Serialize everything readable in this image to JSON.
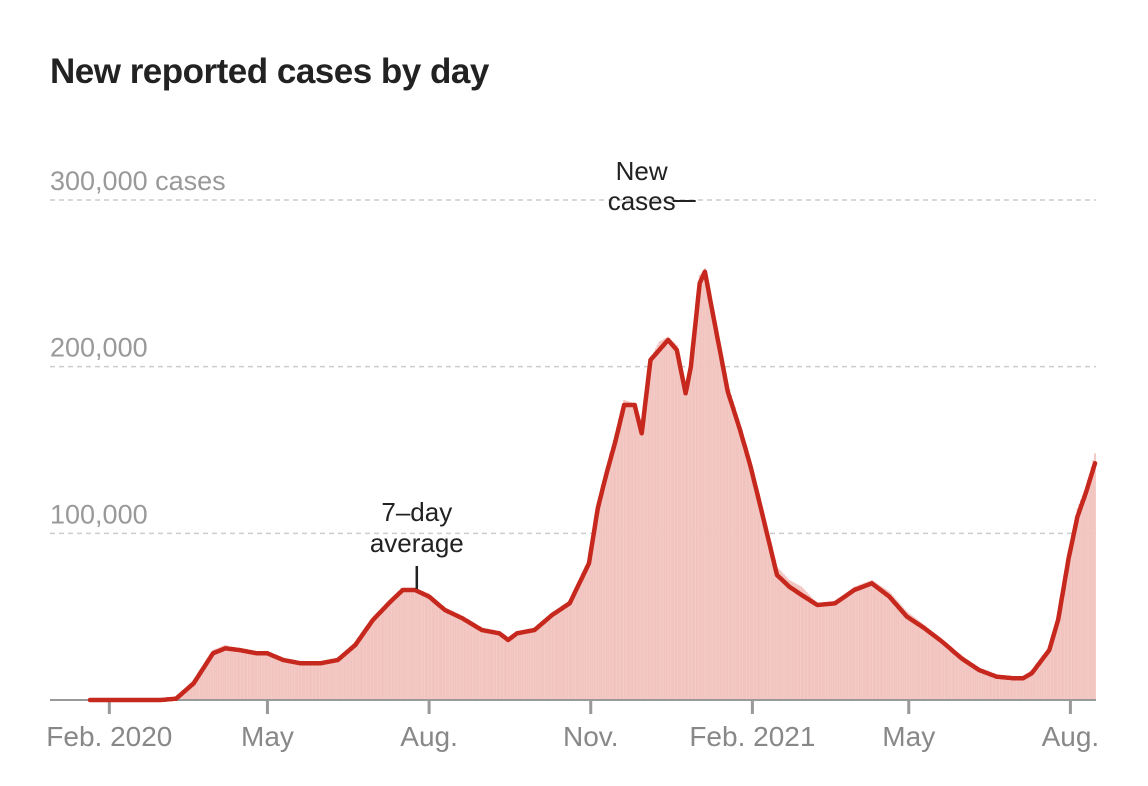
{
  "chart_data": {
    "type": "bar",
    "title": "New reported cases by day",
    "y_unit_label": "300,000 cases",
    "ylim": [
      0,
      300000
    ],
    "yticks": [
      {
        "value": 100000,
        "label": "100,000"
      },
      {
        "value": 200000,
        "label": "200,000"
      },
      {
        "value": 300000,
        "label": "300,000 cases"
      }
    ],
    "x_range": [
      "2020-01-21",
      "2021-08-15"
    ],
    "xticks": [
      {
        "date": "2020-02-01",
        "label": "Feb. 2020"
      },
      {
        "date": "2020-05-01",
        "label": "May"
      },
      {
        "date": "2020-08-01",
        "label": "Aug."
      },
      {
        "date": "2020-11-01",
        "label": "Nov."
      },
      {
        "date": "2021-02-01",
        "label": "Feb. 2021"
      },
      {
        "date": "2021-05-01",
        "label": "May"
      },
      {
        "date": "2021-08-01",
        "label": "Aug."
      }
    ],
    "grid": true,
    "series": [
      {
        "name": "New cases",
        "kind": "daily bars",
        "color": "#f2c4c0",
        "x": [
          "2020-01-21",
          "2020-02-15",
          "2020-03-01",
          "2020-03-10",
          "2020-03-20",
          "2020-03-31",
          "2020-04-07",
          "2020-04-15",
          "2020-04-25",
          "2020-05-01",
          "2020-05-10",
          "2020-05-20",
          "2020-05-31",
          "2020-06-10",
          "2020-06-20",
          "2020-06-30",
          "2020-07-10",
          "2020-07-17",
          "2020-07-24",
          "2020-08-01",
          "2020-08-10",
          "2020-08-20",
          "2020-08-31",
          "2020-09-10",
          "2020-09-15",
          "2020-09-20",
          "2020-09-30",
          "2020-10-10",
          "2020-10-20",
          "2020-10-31",
          "2020-11-05",
          "2020-11-10",
          "2020-11-15",
          "2020-11-20",
          "2020-11-26",
          "2020-11-30",
          "2020-12-05",
          "2020-12-10",
          "2020-12-15",
          "2020-12-20",
          "2020-12-25",
          "2020-12-28",
          "2021-01-02",
          "2021-01-05",
          "2021-01-08",
          "2021-01-12",
          "2021-01-18",
          "2021-01-25",
          "2021-01-31",
          "2021-02-07",
          "2021-02-15",
          "2021-02-22",
          "2021-03-01",
          "2021-03-10",
          "2021-03-20",
          "2021-03-31",
          "2021-04-10",
          "2021-04-20",
          "2021-04-30",
          "2021-05-10",
          "2021-05-20",
          "2021-05-31",
          "2021-06-10",
          "2021-06-20",
          "2021-06-30",
          "2021-07-05",
          "2021-07-10",
          "2021-07-20",
          "2021-07-25",
          "2021-07-31",
          "2021-08-05",
          "2021-08-10",
          "2021-08-15"
        ],
        "values": [
          0,
          0,
          500,
          2000,
          12000,
          30000,
          33000,
          31000,
          29000,
          29000,
          25000,
          23000,
          23000,
          24000,
          35000,
          49000,
          60000,
          67000,
          67000,
          64000,
          55000,
          50000,
          42000,
          40000,
          35000,
          40000,
          43000,
          52000,
          60000,
          85000,
          118000,
          140000,
          160000,
          180000,
          178000,
          165000,
          205000,
          215000,
          218000,
          213000,
          184000,
          200000,
          255000,
          259000,
          245000,
          220000,
          190000,
          165000,
          140000,
          110000,
          80000,
          72000,
          68000,
          58000,
          58000,
          68000,
          72000,
          65000,
          53000,
          45000,
          35000,
          27000,
          19000,
          15000,
          14000,
          14000,
          18000,
          30000,
          52000,
          90000,
          115000,
          128000,
          148000
        ]
      },
      {
        "name": "7–day average",
        "kind": "line",
        "color": "#c6281d",
        "x": [
          "2020-01-21",
          "2020-02-15",
          "2020-03-01",
          "2020-03-10",
          "2020-03-20",
          "2020-03-31",
          "2020-04-07",
          "2020-04-15",
          "2020-04-25",
          "2020-05-01",
          "2020-05-10",
          "2020-05-20",
          "2020-05-31",
          "2020-06-10",
          "2020-06-20",
          "2020-06-30",
          "2020-07-10",
          "2020-07-17",
          "2020-07-24",
          "2020-08-01",
          "2020-08-10",
          "2020-08-20",
          "2020-08-31",
          "2020-09-10",
          "2020-09-15",
          "2020-09-20",
          "2020-09-30",
          "2020-10-10",
          "2020-10-20",
          "2020-10-31",
          "2020-11-05",
          "2020-11-10",
          "2020-11-15",
          "2020-11-20",
          "2020-11-26",
          "2020-11-30",
          "2020-12-05",
          "2020-12-10",
          "2020-12-15",
          "2020-12-20",
          "2020-12-25",
          "2020-12-28",
          "2021-01-02",
          "2021-01-05",
          "2021-01-08",
          "2021-01-12",
          "2021-01-18",
          "2021-01-25",
          "2021-01-31",
          "2021-02-07",
          "2021-02-15",
          "2021-02-22",
          "2021-03-01",
          "2021-03-10",
          "2021-03-20",
          "2021-03-31",
          "2021-04-10",
          "2021-04-20",
          "2021-04-30",
          "2021-05-10",
          "2021-05-20",
          "2021-05-31",
          "2021-06-10",
          "2021-06-20",
          "2021-06-30",
          "2021-07-05",
          "2021-07-10",
          "2021-07-20",
          "2021-07-25",
          "2021-07-31",
          "2021-08-05",
          "2021-08-10",
          "2021-08-15"
        ],
        "values": [
          0,
          0,
          0,
          800,
          10000,
          28000,
          31000,
          30000,
          28000,
          28000,
          24000,
          22000,
          22000,
          24000,
          33000,
          48000,
          59000,
          66000,
          66000,
          62000,
          54000,
          49000,
          42000,
          40000,
          36000,
          40000,
          42000,
          51000,
          58000,
          82000,
          115000,
          136000,
          155000,
          177000,
          177000,
          160000,
          204000,
          210000,
          216000,
          210000,
          184000,
          200000,
          250000,
          257000,
          240000,
          218000,
          185000,
          162000,
          140000,
          110000,
          75000,
          68000,
          63000,
          57000,
          58000,
          66000,
          70000,
          62000,
          50000,
          43000,
          35000,
          25000,
          18000,
          14000,
          13000,
          13000,
          16000,
          30000,
          48000,
          85000,
          110000,
          125000,
          142000
        ]
      }
    ],
    "annotations": [
      {
        "text_lines": [
          "New",
          "cases"
        ],
        "points_to": "New cases",
        "at": "2021-01-02"
      },
      {
        "text_lines": [
          "7–day",
          "average"
        ],
        "points_to": "7–day average",
        "at": "2020-07-25"
      }
    ]
  }
}
